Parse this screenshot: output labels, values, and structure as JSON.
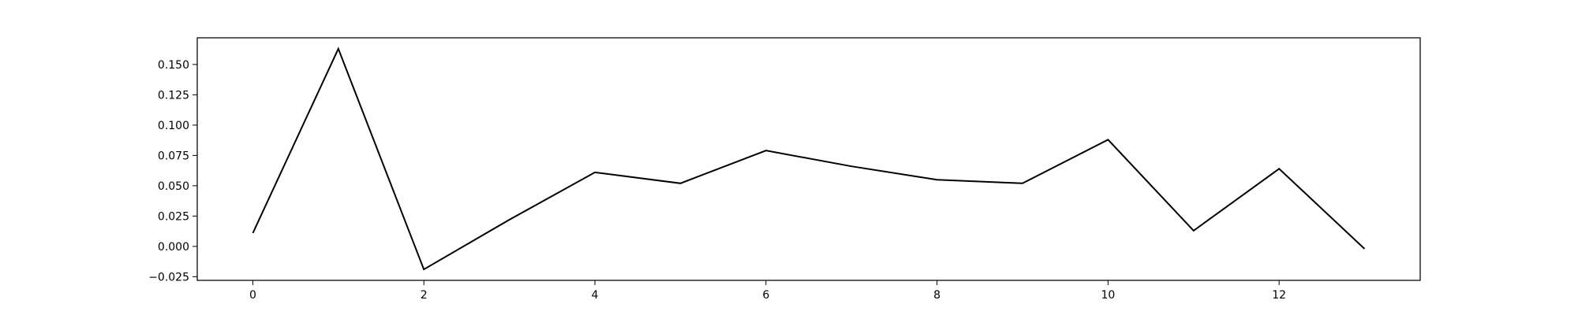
{
  "chart_data": {
    "type": "line",
    "title": "",
    "xlabel": "",
    "ylabel": "",
    "x": [
      0,
      1,
      2,
      3,
      4,
      5,
      6,
      7,
      8,
      9,
      10,
      11,
      12,
      13
    ],
    "series": [
      {
        "values": [
          0.011,
          0.163,
          -0.019,
          0.022,
          0.061,
          0.052,
          0.079,
          0.066,
          0.055,
          0.052,
          0.088,
          0.013,
          0.064,
          -0.002
        ],
        "color": "#000000"
      }
    ],
    "xlim": [
      -0.65,
      13.65
    ],
    "ylim": [
      -0.028,
      0.172
    ],
    "x_ticks": [
      0,
      2,
      4,
      6,
      8,
      10,
      12
    ],
    "x_tick_labels": [
      "0",
      "2",
      "4",
      "6",
      "8",
      "10",
      "12"
    ],
    "y_ticks": [
      -0.025,
      0.0,
      0.025,
      0.05,
      0.075,
      0.1,
      0.125,
      0.15
    ],
    "y_tick_labels": [
      "−0.025",
      "0.000",
      "0.025",
      "0.050",
      "0.075",
      "0.100",
      "0.125",
      "0.150"
    ],
    "grid": false,
    "legend": "none"
  }
}
